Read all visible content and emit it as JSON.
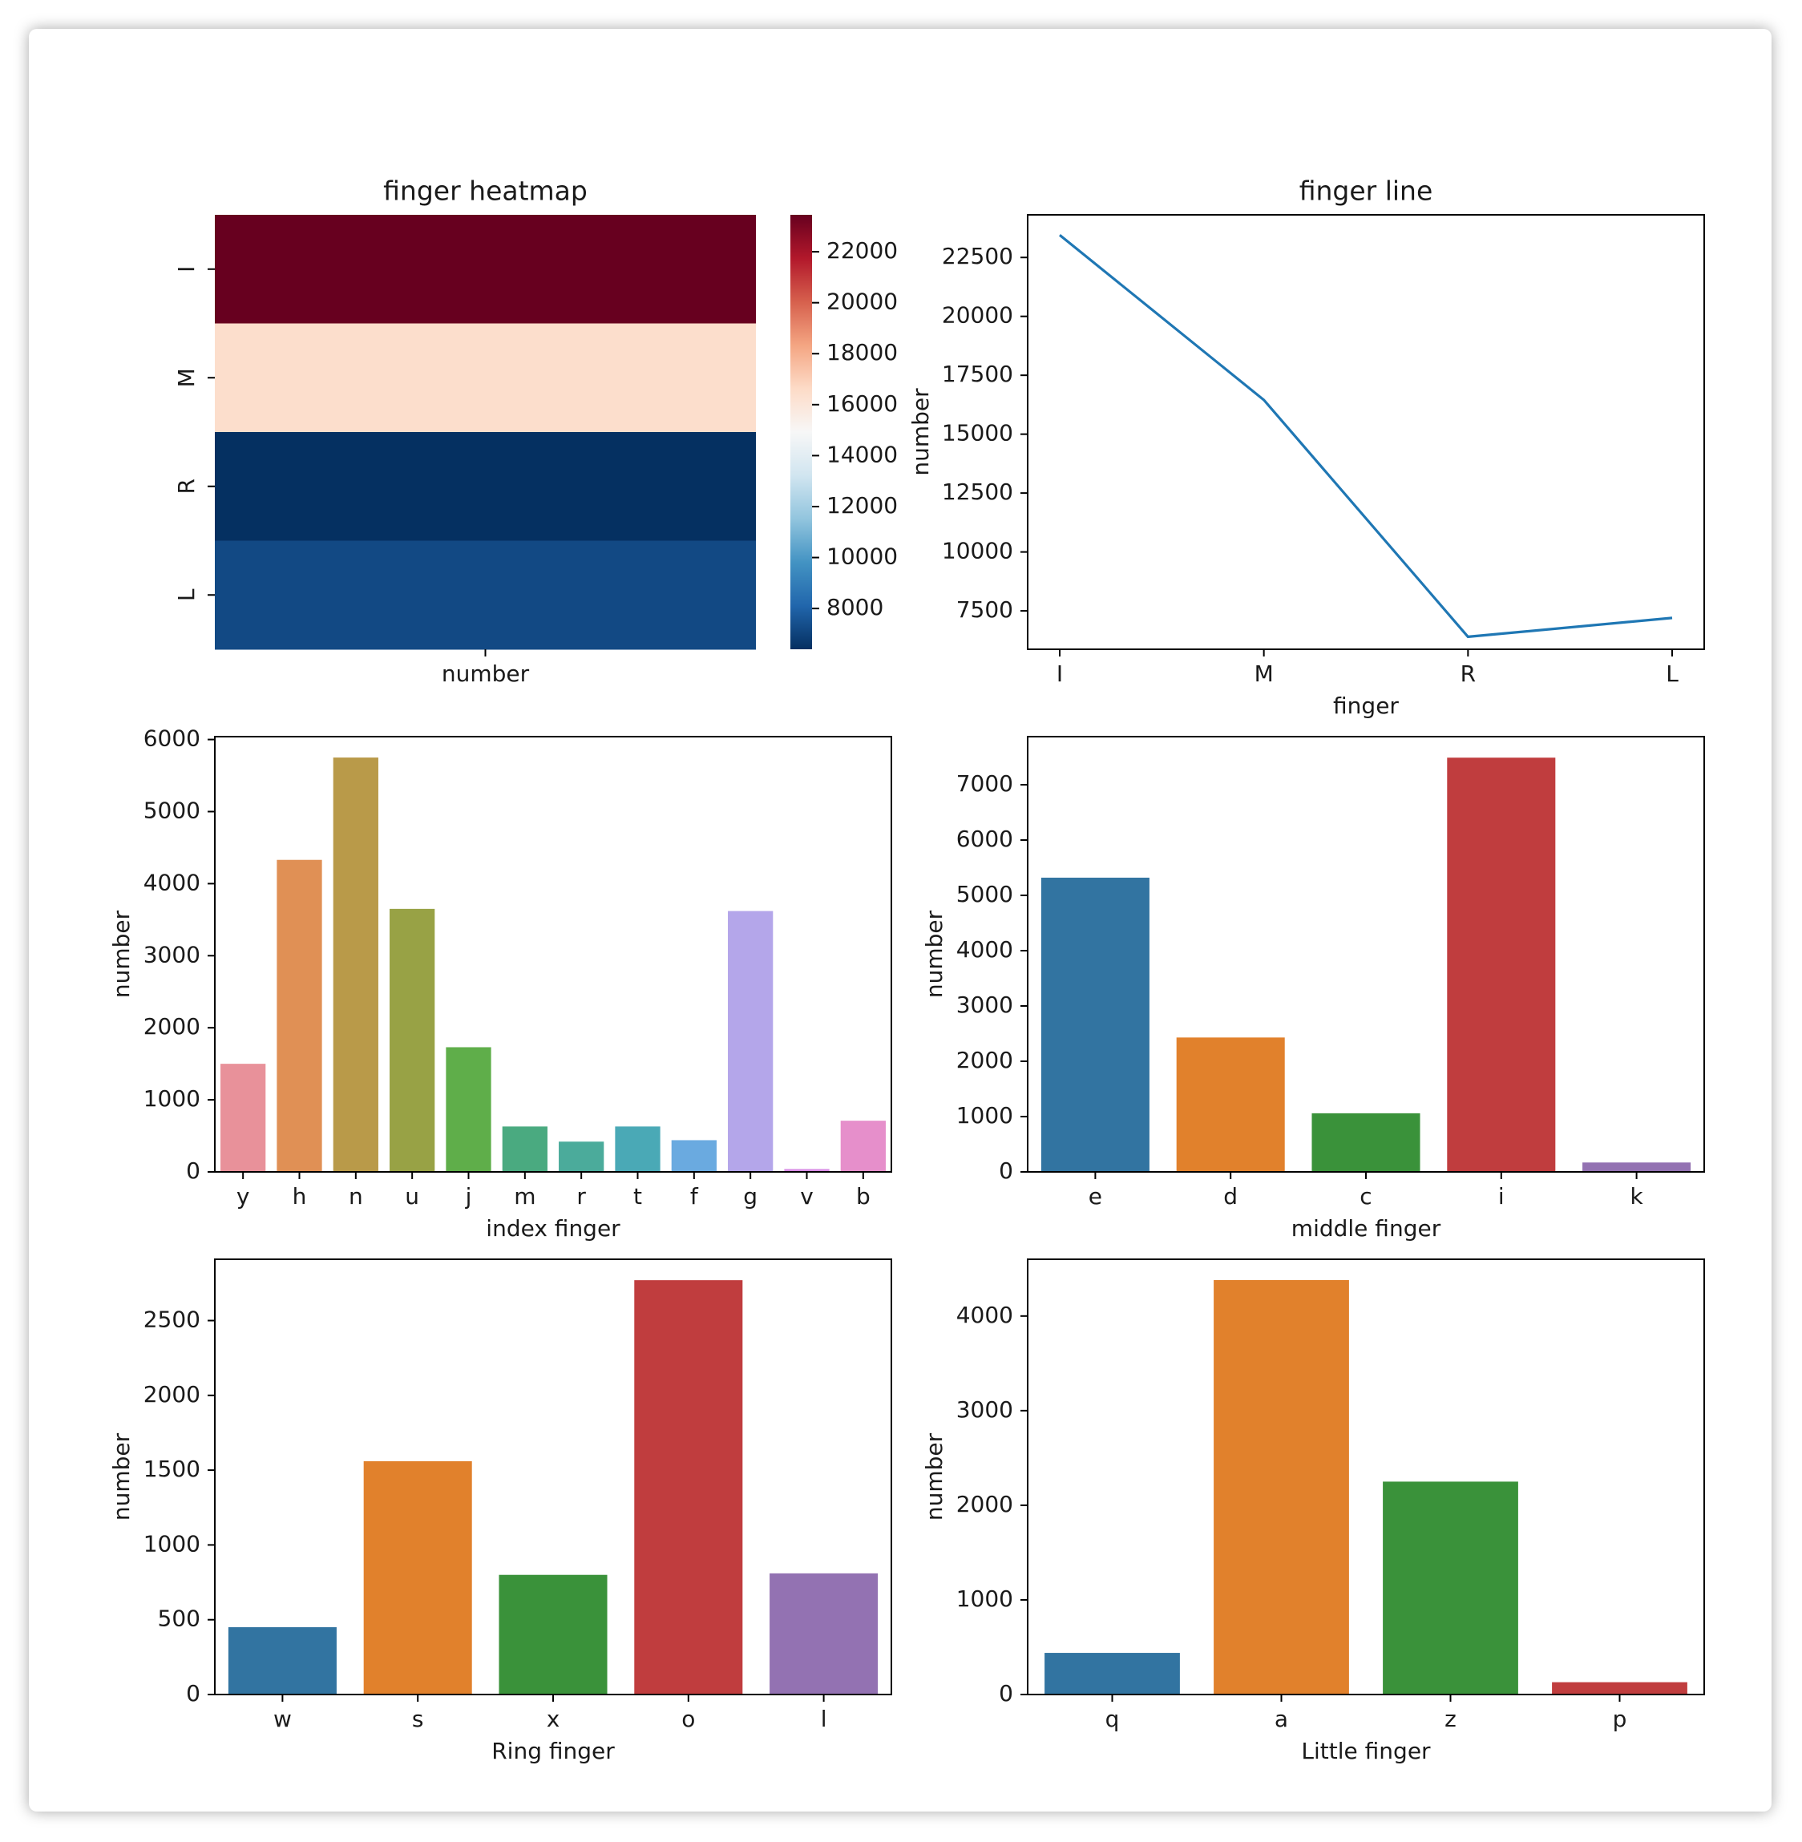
{
  "chart_data": [
    {
      "type": "heatmap",
      "title": "finger heatmap",
      "xlabel": "number",
      "ylabel": "",
      "rows": [
        "I",
        "M",
        "R",
        "L"
      ],
      "values": [
        23450,
        16450,
        6400,
        7200
      ],
      "colorbar": {
        "ticks": [
          22000,
          20000,
          18000,
          16000,
          14000,
          12000,
          10000,
          8000
        ],
        "range": [
          6400,
          23450
        ],
        "cmap": "RdBu_r"
      }
    },
    {
      "type": "line",
      "title": "finger line",
      "xlabel": "finger",
      "ylabel": "number",
      "categories": [
        "I",
        "M",
        "R",
        "L"
      ],
      "values": [
        23450,
        16450,
        6400,
        7200
      ],
      "yticks": [
        7500,
        10000,
        12500,
        15000,
        17500,
        20000,
        22500
      ],
      "color": "#1f77b4"
    },
    {
      "type": "bar",
      "title": "",
      "xlabel": "index finger",
      "ylabel": "number",
      "categories": [
        "y",
        "h",
        "n",
        "u",
        "j",
        "m",
        "r",
        "t",
        "f",
        "g",
        "v",
        "b"
      ],
      "values": [
        1500,
        4330,
        5750,
        3650,
        1730,
        630,
        420,
        630,
        440,
        3620,
        40,
        710
      ],
      "colors": [
        "#e8919a",
        "#e09055",
        "#b99a49",
        "#98a245",
        "#5fae4a",
        "#4aaa80",
        "#4bab9b",
        "#4aa9b6",
        "#6aaae0",
        "#b4a6ea",
        "#d98ee6",
        "#e68fcb"
      ],
      "yticks": [
        0,
        1000,
        2000,
        3000,
        4000,
        5000,
        6000
      ],
      "ylim": [
        0,
        6040
      ]
    },
    {
      "type": "bar",
      "title": "",
      "xlabel": "middle finger",
      "ylabel": "number",
      "categories": [
        "e",
        "d",
        "c",
        "i",
        "k"
      ],
      "values": [
        5320,
        2430,
        1060,
        7490,
        170
      ],
      "colors": [
        "#3274a1",
        "#e1812c",
        "#3a923a",
        "#c03d3e",
        "#9372b2"
      ],
      "yticks": [
        0,
        1000,
        2000,
        3000,
        4000,
        5000,
        6000,
        7000
      ],
      "ylim": [
        0,
        7870
      ]
    },
    {
      "type": "bar",
      "title": "",
      "xlabel": "Ring finger",
      "ylabel": "number",
      "categories": [
        "w",
        "s",
        "x",
        "o",
        "l"
      ],
      "values": [
        450,
        1560,
        800,
        2770,
        810
      ],
      "colors": [
        "#3274a1",
        "#e1812c",
        "#3a923a",
        "#c03d3e",
        "#9372b2"
      ],
      "yticks": [
        0,
        500,
        1000,
        1500,
        2000,
        2500
      ],
      "ylim": [
        0,
        2910
      ]
    },
    {
      "type": "bar",
      "title": "",
      "xlabel": "Little finger",
      "ylabel": "number",
      "categories": [
        "q",
        "a",
        "z",
        "p"
      ],
      "values": [
        440,
        4380,
        2250,
        130
      ],
      "colors": [
        "#3274a1",
        "#e1812c",
        "#3a923a",
        "#c03d3e"
      ],
      "yticks": [
        0,
        1000,
        2000,
        3000,
        4000
      ],
      "ylim": [
        0,
        4600
      ]
    }
  ]
}
